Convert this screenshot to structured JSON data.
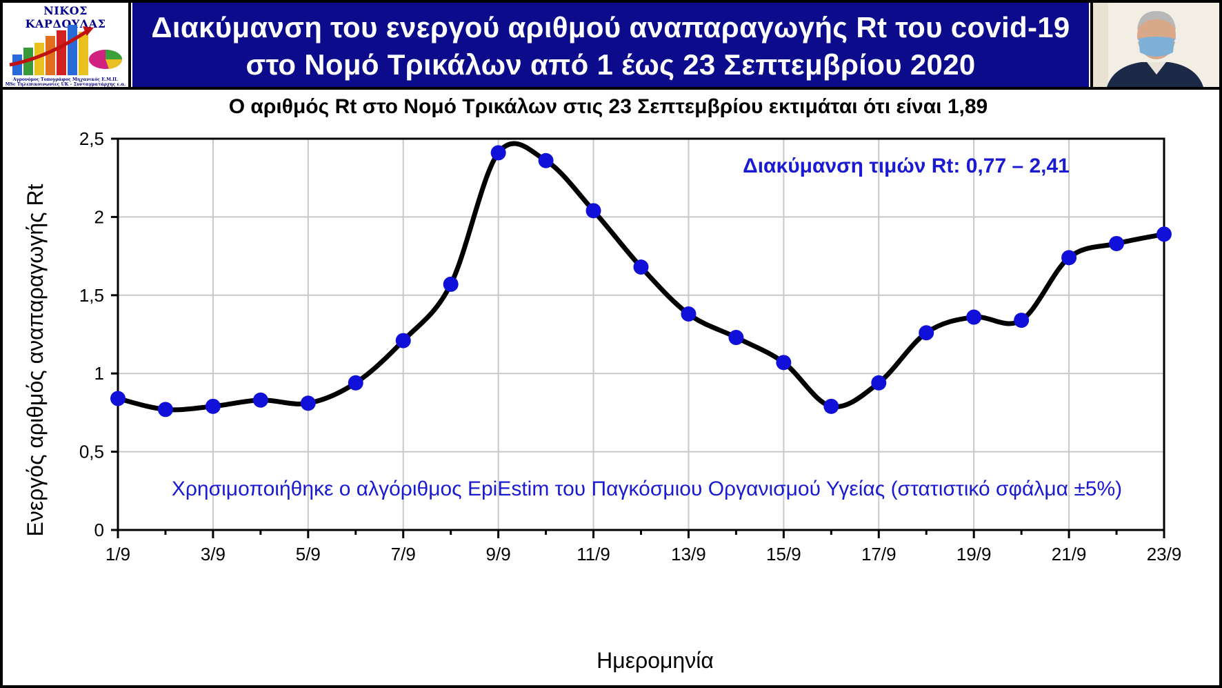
{
  "logo": {
    "name": "ΝΙΚΟΣ ΚΑΡΔΟΥΛΑΣ",
    "subtitle1": "Αγρονόμος Τοπογράφος Μηχανικός Ε.Μ.Π.",
    "subtitle2": "MSc Τηλεπικοινωνίες UK – Συνταγματάρχης ε.α."
  },
  "header": {
    "title_line1": "Διακύμανση του ενεργού αριθμού αναπαραγωγής Rt του covid-19",
    "title_line2": "στο Νομό Τρικάλων από 1 έως 23 Σεπτεμβρίου 2020"
  },
  "colors": {
    "header_bg": "#0b0b8c",
    "marker": "#1010d8",
    "line": "#000000",
    "annotation": "#1a1ad0"
  },
  "chart_data": {
    "type": "line",
    "title": "Ο αριθμός Rt στο Νομό Τρικάλων στις 23 Σεπτεμβρίου εκτιμάται ότι είναι 1,89",
    "xlabel": "Ημερομηνία",
    "ylabel": "Ενεργός αριθμός αναπαραγωγής Rt",
    "x": [
      1,
      2,
      3,
      4,
      5,
      6,
      7,
      8,
      9,
      10,
      11,
      12,
      13,
      14,
      15,
      16,
      17,
      18,
      19,
      20,
      21,
      22,
      23
    ],
    "x_tick_values": [
      1,
      3,
      5,
      7,
      9,
      11,
      13,
      15,
      17,
      19,
      21,
      23
    ],
    "x_tick_labels": [
      "1/9",
      "3/9",
      "5/9",
      "7/9",
      "9/9",
      "11/9",
      "13/9",
      "15/9",
      "17/9",
      "19/9",
      "21/9",
      "23/9"
    ],
    "xlim": [
      1,
      23
    ],
    "y_tick_values": [
      0,
      0.5,
      1,
      1.5,
      2,
      2.5
    ],
    "y_tick_labels": [
      "0",
      "0,5",
      "1",
      "1,5",
      "2",
      "2,5"
    ],
    "ylim": [
      0,
      2.5
    ],
    "grid": true,
    "series": [
      {
        "values": [
          0.84,
          0.77,
          0.79,
          0.83,
          0.81,
          0.94,
          1.21,
          1.57,
          2.41,
          2.36,
          2.04,
          1.68,
          1.38,
          1.23,
          1.07,
          0.79,
          0.94,
          1.26,
          1.36,
          1.34,
          1.74,
          1.83,
          1.89
        ]
      }
    ],
    "annotations": {
      "range": "Διακύμανση τιμών Rt: 0,77 – 2,41",
      "method": "Χρησιμοποιήθηκε ο αλγόριθμος EpiEstim του Παγκόσμιου Οργανισμού Υγείας (στατιστικό σφάλμα ±5%)"
    }
  }
}
